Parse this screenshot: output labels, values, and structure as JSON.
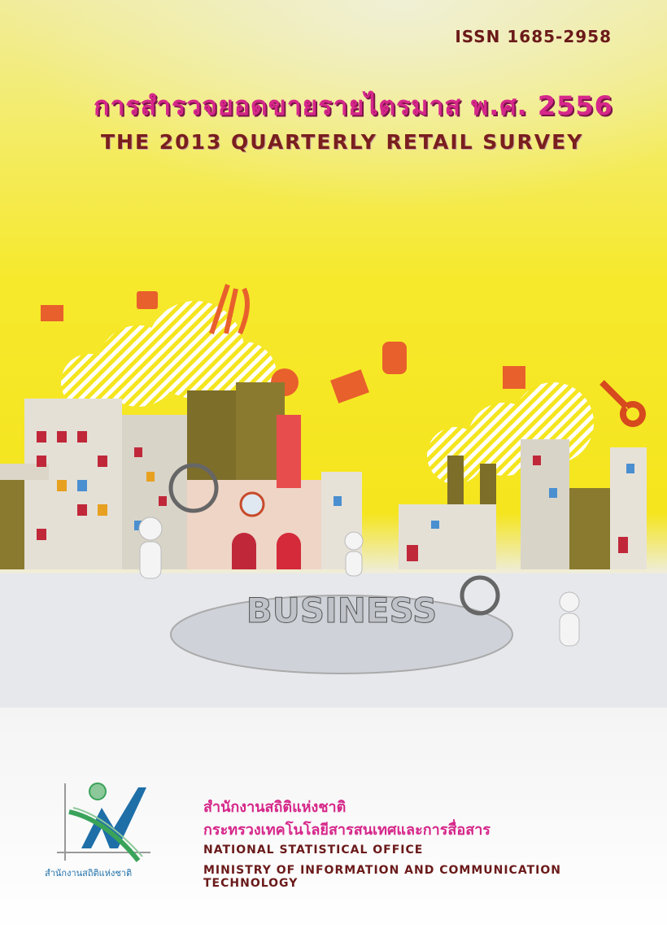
{
  "cover": {
    "issn": "ISSN 1685-2958",
    "title_thai": "การสำรวจยอดขายรายไตรมาส พ.ศ. 2556",
    "title_english": "THE 2013 QUARTERLY RETAIL SURVEY",
    "illustration_word": "BUSINESS",
    "colors": {
      "title": "#d6278a",
      "english": "#7a1e1e",
      "background": "#f5e51e",
      "logo_blue": "#1e6fa8",
      "logo_green": "#3aa35a"
    }
  },
  "publisher": {
    "thai_office": "สำนักงานสถิติแห่งชาติ",
    "thai_ministry": "กระทรวงเทคโนโลยีสารสนเทศและการสื่อสาร",
    "english_office": "NATIONAL STATISTICAL OFFICE",
    "english_ministry": "MINISTRY OF INFORMATION AND COMMUNICATION TECHNOLOGY",
    "logo_caption": "สำนักงานสถิติแห่งชาติ"
  }
}
